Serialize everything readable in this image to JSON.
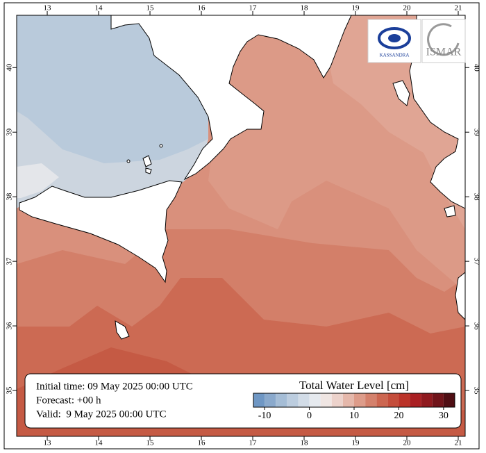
{
  "map": {
    "xlim": [
      12.405,
      21.135
    ],
    "ylim": [
      34.29,
      40.81
    ],
    "lon_ticks": [
      13,
      14,
      15,
      16,
      17,
      18,
      19,
      20,
      21
    ],
    "lat_ticks": [
      35,
      36,
      37,
      38,
      39,
      40
    ],
    "info": {
      "initial": "Initial time: 09 May 2025 00:00 UTC",
      "forecast": "Forecast: +00 h",
      "valid": "Valid:  9 May 2025 00:00 UTC"
    },
    "legend": {
      "title": "Total Water Level [cm]",
      "bounds": [
        -12.5,
        32.5
      ],
      "step": 2.5,
      "colors": [
        "#6f97c4",
        "#8aa9cc",
        "#a5bdd6",
        "#bccddf",
        "#d2dce7",
        "#e6eaef",
        "#f0e6e3",
        "#ecd2cb",
        "#e5b8ab",
        "#dd9c8a",
        "#d4816c",
        "#cc6650",
        "#c44d3b",
        "#bb3329",
        "#a91f22",
        "#8f1a1f",
        "#70141a",
        "#4f0e14"
      ],
      "ticks": [
        -10,
        0,
        10,
        20,
        30
      ]
    },
    "logos": {
      "left": "KASSANDRA",
      "right": "ISMAR"
    }
  }
}
